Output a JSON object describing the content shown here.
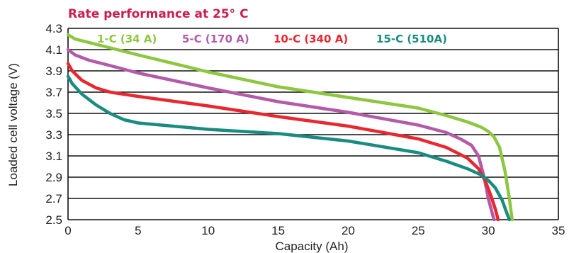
{
  "chart_data": {
    "type": "line",
    "title": "Rate performance at 25° C",
    "xlabel": "Capacity (Ah)",
    "ylabel": "Loaded cell voltage (V)",
    "xlim": [
      0,
      35
    ],
    "ylim": [
      2.5,
      4.3
    ],
    "xticks": [
      0,
      5,
      10,
      15,
      20,
      25,
      30,
      35
    ],
    "yticks": [
      2.5,
      2.7,
      2.9,
      3.1,
      3.3,
      3.5,
      3.7,
      3.9,
      4.1,
      4.3
    ],
    "ytick_labels": [
      "2.5",
      "2.7",
      "2.9",
      "3.1",
      "3.3",
      "3.5",
      "3.7",
      "3.9",
      "4.1",
      "4.3"
    ],
    "grid": "horizontal",
    "legend_position": "top",
    "colors": {
      "title": "#cc1f4e",
      "grid": "#111111"
    },
    "series": [
      {
        "name": "1-C (34 A)",
        "color": "#8dc63f",
        "x": [
          0,
          0.5,
          2,
          5,
          10,
          15,
          20,
          25,
          27,
          28.5,
          29.5,
          30,
          30.4,
          30.8,
          31.2,
          31.5,
          31.7
        ],
        "y": [
          4.24,
          4.2,
          4.15,
          4.05,
          3.89,
          3.75,
          3.65,
          3.55,
          3.48,
          3.42,
          3.37,
          3.33,
          3.28,
          3.18,
          2.95,
          2.7,
          2.5
        ]
      },
      {
        "name": "5-C (170 A)",
        "color": "#b35aa8",
        "x": [
          0,
          0.5,
          1.5,
          3,
          5,
          10,
          15,
          20,
          25,
          27,
          28,
          28.8,
          29.3,
          29.7,
          30,
          30.2,
          30.4
        ],
        "y": [
          4.1,
          4.05,
          4.0,
          3.95,
          3.88,
          3.74,
          3.61,
          3.51,
          3.39,
          3.32,
          3.26,
          3.2,
          3.1,
          2.9,
          2.7,
          2.6,
          2.5
        ]
      },
      {
        "name": "10-C (340 A)",
        "color": "#e8272f",
        "x": [
          0,
          0.3,
          1,
          2,
          3,
          5,
          10,
          15,
          20,
          25,
          27,
          28.5,
          29.3,
          29.8,
          30.2,
          30.5,
          30.7
        ],
        "y": [
          3.97,
          3.9,
          3.81,
          3.74,
          3.7,
          3.66,
          3.57,
          3.47,
          3.38,
          3.26,
          3.18,
          3.08,
          2.98,
          2.86,
          2.72,
          2.6,
          2.5
        ]
      },
      {
        "name": "15-C (510A)",
        "color": "#1a8c7f",
        "x": [
          0,
          0.3,
          1,
          2,
          3,
          4,
          5,
          10,
          15,
          20,
          25,
          27,
          28.5,
          29.5,
          30,
          30.5,
          31,
          31.3,
          31.5
        ],
        "y": [
          3.85,
          3.78,
          3.68,
          3.58,
          3.5,
          3.44,
          3.41,
          3.35,
          3.31,
          3.24,
          3.13,
          3.05,
          2.98,
          2.92,
          2.87,
          2.8,
          2.68,
          2.57,
          2.5
        ]
      }
    ]
  }
}
